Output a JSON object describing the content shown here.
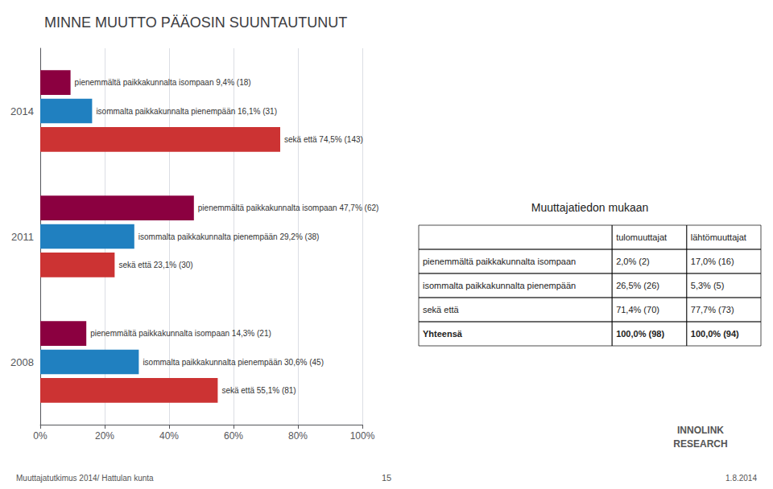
{
  "chart_data": {
    "type": "bar",
    "orientation": "horizontal",
    "title": "MINNE MUUTTO PÄÄOSIN SUUNTAUTUNUT",
    "categories": [
      "2014",
      "2011",
      "2008"
    ],
    "series": [
      {
        "color": "#8B0040",
        "values": [
          9.4,
          47.7,
          14.3
        ],
        "value_labels": [
          "pienemmältä paikkakunnalta isompaan 9,4% (18)",
          "pienemmältä paikkakunnalta isompaan 47,7% (62)",
          "pienemmältä paikkakunnalta isompaan 14,3% (21)"
        ]
      },
      {
        "color": "#2080C0",
        "values": [
          16.1,
          29.2,
          30.6
        ],
        "value_labels": [
          "isommalta paikkakunnalta pienempään 16,1% (31)",
          "isommalta paikkakunnalta pienempään 29,2% (38)",
          "isommalta paikkakunnalta pienempään 30,6% (45)"
        ]
      },
      {
        "color": "#CC3333",
        "values": [
          74.5,
          23.1,
          55.1
        ],
        "value_labels": [
          "sekä että 74,5% (143)",
          "sekä että 23,1% (30)",
          "sekä että 55,1% (81)"
        ]
      }
    ],
    "xlim": [
      0,
      100
    ],
    "xticks": [
      {
        "value": 0,
        "label": "0%"
      },
      {
        "value": 20,
        "label": "20%"
      },
      {
        "value": 40,
        "label": "40%"
      },
      {
        "value": 60,
        "label": "60%"
      },
      {
        "value": 80,
        "label": "80%"
      },
      {
        "value": 100,
        "label": "100%"
      }
    ],
    "grid": true,
    "table": {
      "title": "Muuttajatiedon mukaan",
      "headers": [
        "tulomuuttajat",
        "lähtömuuttajat"
      ],
      "rows": [
        [
          "pienemmältä paikkakunnalta isompaan",
          "2,0% (2)",
          "17,0% (16)"
        ],
        [
          "isommalta paikkakunnalta pienempään",
          "26,5% (26)",
          "5,3% (5)"
        ],
        [
          "sekä että",
          "71,4% (70)",
          "77,7% (73)"
        ],
        [
          "Yhteensä",
          "100,0% (98)",
          "100,0% (94)"
        ]
      ]
    },
    "annotations": [
      "Muuttajatutkimus 2014/ Hattulan kunta",
      "15",
      "1.8.2014",
      "INNOLINK",
      "RESEARCH"
    ]
  }
}
